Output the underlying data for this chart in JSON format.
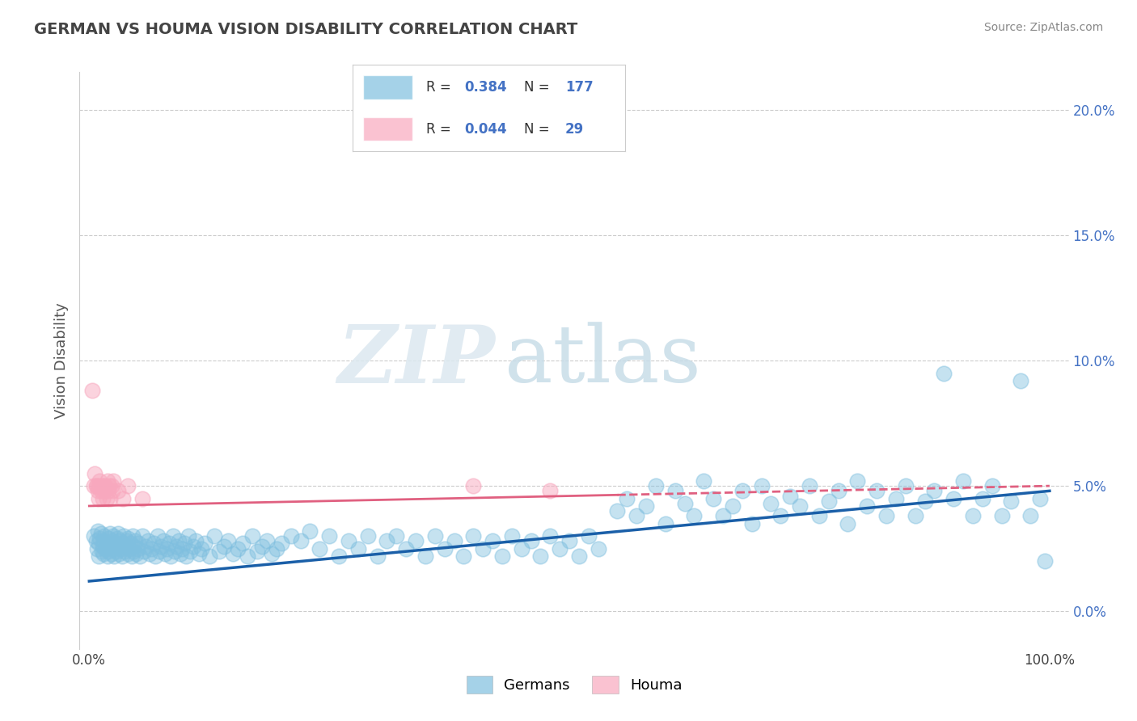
{
  "title": "GERMAN VS HOUMA VISION DISABILITY CORRELATION CHART",
  "source": "Source: ZipAtlas.com",
  "ylabel": "Vision Disability",
  "xlim": [
    -0.01,
    1.02
  ],
  "ylim": [
    -0.015,
    0.215
  ],
  "yticks": [
    0.0,
    0.05,
    0.1,
    0.15,
    0.2
  ],
  "ytick_labels": [
    "0.0%",
    "5.0%",
    "10.0%",
    "15.0%",
    "20.0%"
  ],
  "xticks": [
    0.0,
    1.0
  ],
  "xtick_labels": [
    "0.0%",
    "100.0%"
  ],
  "background_color": "#ffffff",
  "blue_color": "#7fbfdf",
  "pink_color": "#f8a8be",
  "blue_line_color": "#1a5fa8",
  "pink_line_color": "#e06080",
  "R_blue": 0.384,
  "N_blue": 177,
  "R_pink": 0.044,
  "N_pink": 29,
  "grid_color": "#cccccc",
  "title_color": "#444444",
  "title_fontsize": 14,
  "watermark_zip": "ZIP",
  "watermark_atlas": "atlas",
  "blue_x": [
    0.005,
    0.007,
    0.008,
    0.009,
    0.01,
    0.01,
    0.011,
    0.012,
    0.013,
    0.014,
    0.015,
    0.015,
    0.016,
    0.017,
    0.018,
    0.019,
    0.02,
    0.02,
    0.021,
    0.022,
    0.023,
    0.024,
    0.025,
    0.025,
    0.026,
    0.027,
    0.028,
    0.029,
    0.03,
    0.03,
    0.031,
    0.032,
    0.033,
    0.034,
    0.035,
    0.036,
    0.037,
    0.038,
    0.039,
    0.04,
    0.04,
    0.042,
    0.043,
    0.044,
    0.045,
    0.046,
    0.047,
    0.048,
    0.049,
    0.05,
    0.051,
    0.053,
    0.055,
    0.057,
    0.059,
    0.061,
    0.063,
    0.065,
    0.067,
    0.069,
    0.071,
    0.073,
    0.075,
    0.077,
    0.079,
    0.081,
    0.083,
    0.085,
    0.087,
    0.089,
    0.091,
    0.093,
    0.095,
    0.097,
    0.099,
    0.101,
    0.103,
    0.105,
    0.108,
    0.111,
    0.114,
    0.117,
    0.12,
    0.125,
    0.13,
    0.135,
    0.14,
    0.145,
    0.15,
    0.155,
    0.16,
    0.165,
    0.17,
    0.175,
    0.18,
    0.185,
    0.19,
    0.195,
    0.2,
    0.55,
    0.56,
    0.57,
    0.58,
    0.59,
    0.6,
    0.61,
    0.62,
    0.63,
    0.64,
    0.65,
    0.66,
    0.67,
    0.68,
    0.69,
    0.7,
    0.71,
    0.72,
    0.73,
    0.74,
    0.75,
    0.76,
    0.77,
    0.78,
    0.79,
    0.8,
    0.81,
    0.82,
    0.83,
    0.84,
    0.85,
    0.86,
    0.87,
    0.88,
    0.89,
    0.9,
    0.91,
    0.92,
    0.93,
    0.94,
    0.95,
    0.96,
    0.97,
    0.98,
    0.99,
    0.995,
    0.21,
    0.22,
    0.23,
    0.24,
    0.25,
    0.26,
    0.27,
    0.28,
    0.29,
    0.3,
    0.31,
    0.32,
    0.33,
    0.34,
    0.35,
    0.36,
    0.37,
    0.38,
    0.39,
    0.4,
    0.41,
    0.42,
    0.43,
    0.44,
    0.45,
    0.46,
    0.47,
    0.48,
    0.49,
    0.5,
    0.51,
    0.52,
    0.53
  ],
  "blue_y": [
    0.03,
    0.028,
    0.025,
    0.032,
    0.027,
    0.022,
    0.029,
    0.031,
    0.024,
    0.026,
    0.028,
    0.023,
    0.03,
    0.025,
    0.027,
    0.022,
    0.029,
    0.024,
    0.026,
    0.031,
    0.023,
    0.028,
    0.025,
    0.03,
    0.022,
    0.027,
    0.024,
    0.029,
    0.026,
    0.031,
    0.023,
    0.028,
    0.025,
    0.022,
    0.027,
    0.03,
    0.024,
    0.026,
    0.028,
    0.023,
    0.029,
    0.025,
    0.027,
    0.022,
    0.03,
    0.024,
    0.026,
    0.028,
    0.023,
    0.025,
    0.027,
    0.022,
    0.03,
    0.024,
    0.026,
    0.028,
    0.023,
    0.025,
    0.027,
    0.022,
    0.03,
    0.024,
    0.026,
    0.028,
    0.023,
    0.025,
    0.027,
    0.022,
    0.03,
    0.024,
    0.026,
    0.028,
    0.023,
    0.025,
    0.027,
    0.022,
    0.03,
    0.024,
    0.026,
    0.028,
    0.023,
    0.025,
    0.027,
    0.022,
    0.03,
    0.024,
    0.026,
    0.028,
    0.023,
    0.025,
    0.027,
    0.022,
    0.03,
    0.024,
    0.026,
    0.028,
    0.023,
    0.025,
    0.027,
    0.04,
    0.045,
    0.038,
    0.042,
    0.05,
    0.035,
    0.048,
    0.043,
    0.038,
    0.052,
    0.045,
    0.038,
    0.042,
    0.048,
    0.035,
    0.05,
    0.043,
    0.038,
    0.046,
    0.042,
    0.05,
    0.038,
    0.044,
    0.048,
    0.035,
    0.052,
    0.042,
    0.048,
    0.038,
    0.045,
    0.05,
    0.038,
    0.044,
    0.048,
    0.095,
    0.045,
    0.052,
    0.038,
    0.045,
    0.05,
    0.038,
    0.044,
    0.092,
    0.038,
    0.045,
    0.02,
    0.03,
    0.028,
    0.032,
    0.025,
    0.03,
    0.022,
    0.028,
    0.025,
    0.03,
    0.022,
    0.028,
    0.03,
    0.025,
    0.028,
    0.022,
    0.03,
    0.025,
    0.028,
    0.022,
    0.03,
    0.025,
    0.028,
    0.022,
    0.03,
    0.025,
    0.028,
    0.022,
    0.03,
    0.025,
    0.028,
    0.022,
    0.03,
    0.025
  ],
  "pink_x": [
    0.003,
    0.005,
    0.006,
    0.007,
    0.008,
    0.009,
    0.01,
    0.01,
    0.011,
    0.012,
    0.013,
    0.014,
    0.015,
    0.016,
    0.017,
    0.018,
    0.019,
    0.02,
    0.021,
    0.022,
    0.023,
    0.024,
    0.025,
    0.03,
    0.035,
    0.04,
    0.055,
    0.4,
    0.48
  ],
  "pink_y": [
    0.088,
    0.05,
    0.055,
    0.05,
    0.05,
    0.048,
    0.05,
    0.045,
    0.052,
    0.048,
    0.05,
    0.045,
    0.05,
    0.048,
    0.05,
    0.045,
    0.052,
    0.048,
    0.05,
    0.045,
    0.05,
    0.048,
    0.052,
    0.048,
    0.045,
    0.05,
    0.045,
    0.05,
    0.048
  ],
  "blue_line_x0": 0.0,
  "blue_line_x1": 1.0,
  "blue_line_y0": 0.012,
  "blue_line_y1": 0.048,
  "pink_line_x0": 0.0,
  "pink_line_x1": 1.0,
  "pink_line_y0": 0.042,
  "pink_line_y1": 0.05,
  "pink_line_solid_end": 0.55
}
